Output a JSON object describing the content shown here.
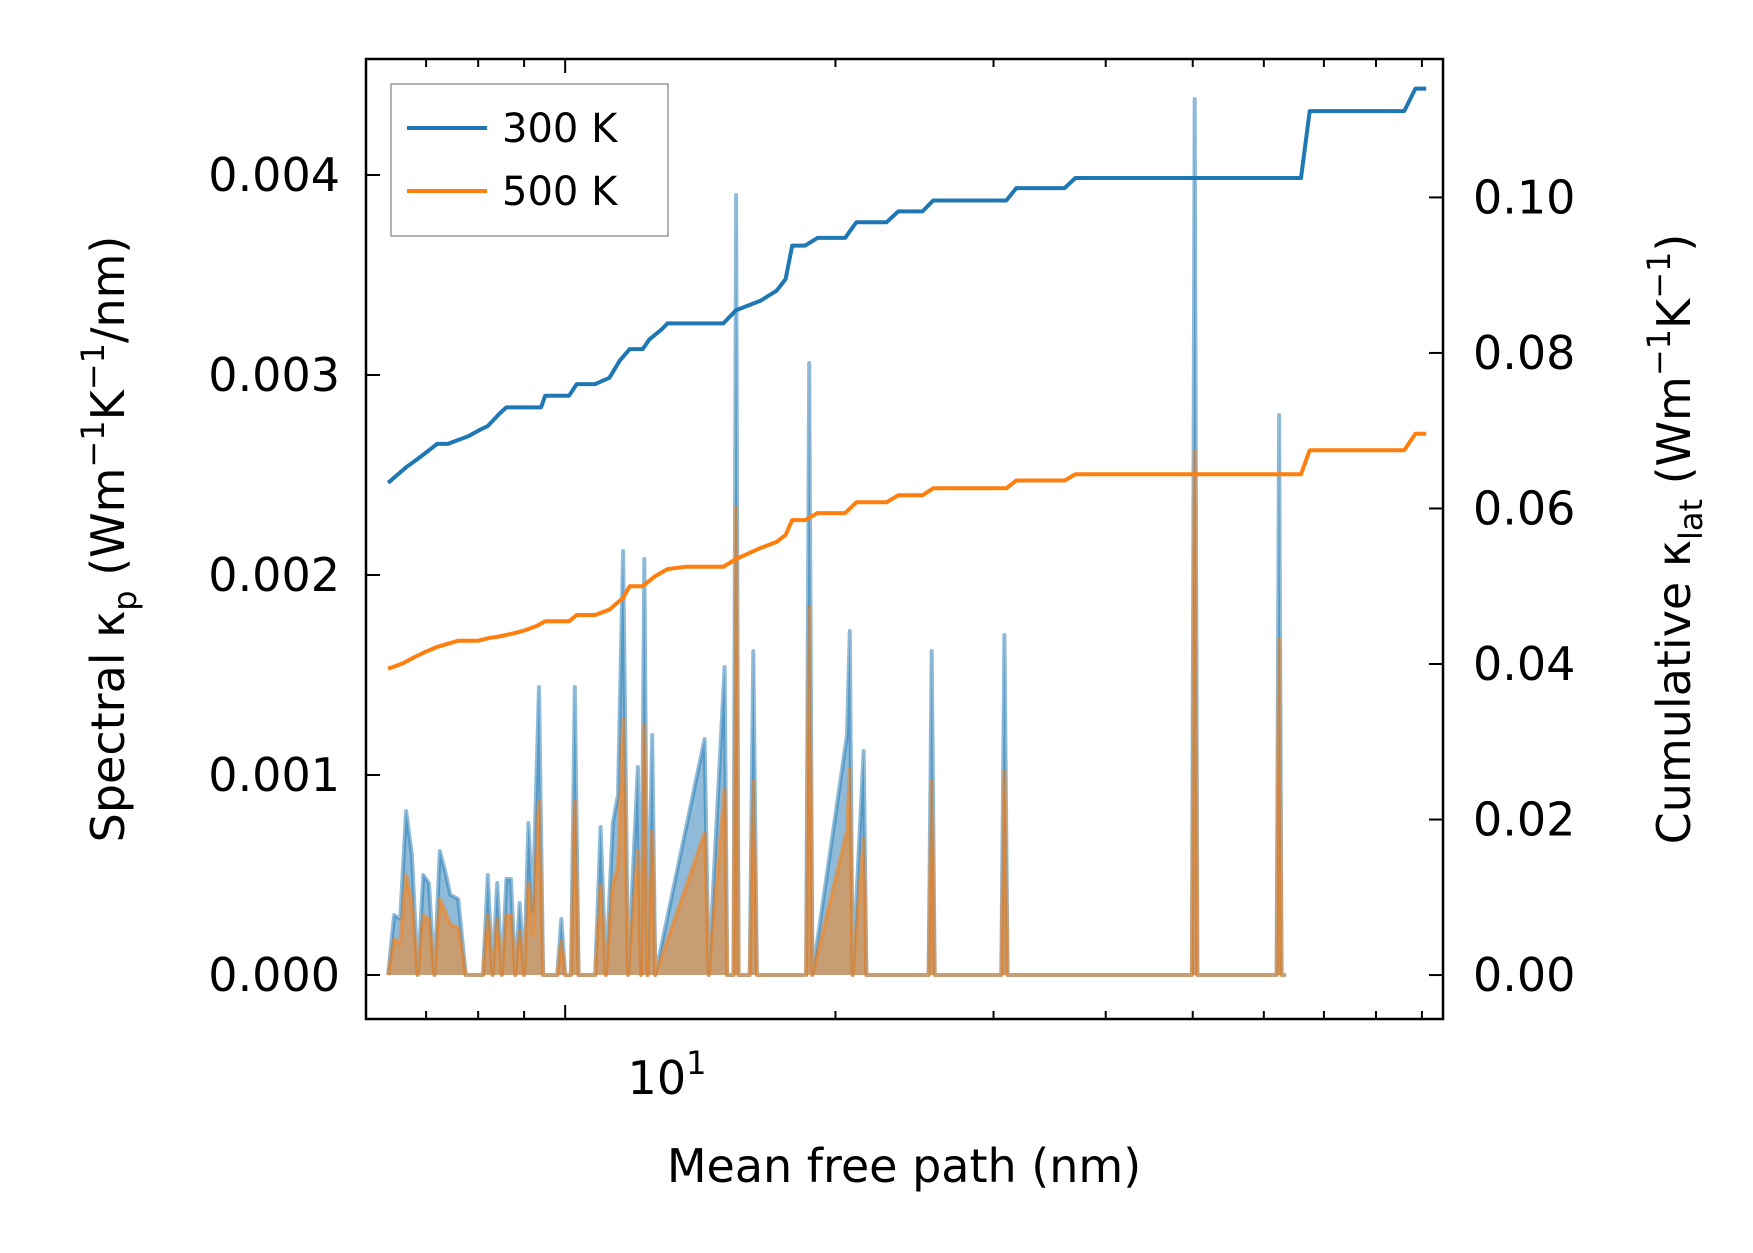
{
  "chart_data": {
    "type": "line",
    "xscale": "log",
    "xlabel": "Mean free path (nm)",
    "ylabel_left": {
      "main": "Spectral κ",
      "sub": "p",
      "pre_units": " (Wm",
      "e1": "−1",
      "mid": "K",
      "e2": "−1",
      "post": "/nm)"
    },
    "ylabel_right": {
      "main": "Cumulative κ",
      "sub": "lat",
      "pre_units": " (Wm",
      "e1": "−1",
      "mid": "K",
      "e2": "−1",
      "post": ")"
    },
    "xlim": [
      6.0,
      95.0
    ],
    "ylim_left": [
      -0.00022,
      0.00458
    ],
    "ylim_right": [
      -0.00565,
      0.1178
    ],
    "x_tick_labels": [
      {
        "base": "10",
        "exp": "1",
        "value": 10
      }
    ],
    "yticks_left": [
      {
        "value": 0.0,
        "label": "0.000"
      },
      {
        "value": 0.001,
        "label": "0.001"
      },
      {
        "value": 0.002,
        "label": "0.002"
      },
      {
        "value": 0.003,
        "label": "0.003"
      },
      {
        "value": 0.004,
        "label": "0.004"
      }
    ],
    "yticks_right": [
      {
        "value": 0.0,
        "label": "0.00"
      },
      {
        "value": 0.02,
        "label": "0.02"
      },
      {
        "value": 0.04,
        "label": "0.04"
      },
      {
        "value": 0.06,
        "label": "0.06"
      },
      {
        "value": 0.08,
        "label": "0.08"
      },
      {
        "value": 0.1,
        "label": "0.10"
      }
    ],
    "legend": {
      "placement": "upper-left",
      "entries": [
        "300 K",
        "500 K"
      ]
    },
    "series": [
      {
        "name": "300 K",
        "color": "#1f77b4",
        "cumulative": [
          [
            6.35,
            0.0633
          ],
          [
            6.5,
            0.0643
          ],
          [
            6.65,
            0.0653
          ],
          [
            6.8,
            0.0661
          ],
          [
            7.0,
            0.0672
          ],
          [
            7.2,
            0.0683
          ],
          [
            7.4,
            0.0683
          ],
          [
            7.6,
            0.0688
          ],
          [
            7.8,
            0.0693
          ],
          [
            8.0,
            0.07
          ],
          [
            8.2,
            0.0706
          ],
          [
            8.45,
            0.0722
          ],
          [
            8.6,
            0.073
          ],
          [
            8.9,
            0.073
          ],
          [
            9.4,
            0.073
          ],
          [
            9.5,
            0.0745
          ],
          [
            10.1,
            0.0745
          ],
          [
            10.3,
            0.076
          ],
          [
            10.8,
            0.076
          ],
          [
            11.2,
            0.0768
          ],
          [
            11.5,
            0.079
          ],
          [
            11.8,
            0.0805
          ],
          [
            12.2,
            0.0805
          ],
          [
            12.4,
            0.0817
          ],
          [
            12.8,
            0.083
          ],
          [
            13.0,
            0.0838
          ],
          [
            13.6,
            0.0838
          ],
          [
            15.0,
            0.0838
          ],
          [
            15.5,
            0.0855
          ],
          [
            16.5,
            0.0867
          ],
          [
            17.2,
            0.088
          ],
          [
            17.6,
            0.0895
          ],
          [
            17.9,
            0.0938
          ],
          [
            18.5,
            0.0938
          ],
          [
            19.1,
            0.0948
          ],
          [
            20.5,
            0.0948
          ],
          [
            21.1,
            0.0968
          ],
          [
            22.8,
            0.0968
          ],
          [
            23.5,
            0.0982
          ],
          [
            25.0,
            0.0982
          ],
          [
            25.7,
            0.0996
          ],
          [
            27.4,
            0.0996
          ],
          [
            31.0,
            0.0996
          ],
          [
            31.8,
            0.1012
          ],
          [
            36.0,
            0.1012
          ],
          [
            37.0,
            0.1025
          ],
          [
            46.0,
            0.1025
          ],
          [
            66.0,
            0.1025
          ],
          [
            67.5,
            0.1111
          ],
          [
            86.0,
            0.1111
          ],
          [
            88.5,
            0.114
          ],
          [
            91.0,
            0.114
          ]
        ],
        "spectral": [
          [
            6.35,
            0.0
          ],
          [
            6.45,
            0.0003
          ],
          [
            6.55,
            0.00028
          ],
          [
            6.65,
            0.00082
          ],
          [
            6.75,
            0.0006
          ],
          [
            6.85,
            0.0
          ],
          [
            6.95,
            0.0005
          ],
          [
            7.05,
            0.00046
          ],
          [
            7.15,
            0.0
          ],
          [
            7.25,
            0.00062
          ],
          [
            7.35,
            0.00052
          ],
          [
            7.45,
            0.0004
          ],
          [
            7.6,
            0.00038
          ],
          [
            7.75,
            0.0
          ],
          [
            8.1,
            0.0
          ],
          [
            8.2,
            0.0005
          ],
          [
            8.3,
            0.0
          ],
          [
            8.4,
            0.00046
          ],
          [
            8.5,
            0.0
          ],
          [
            8.6,
            0.00048
          ],
          [
            8.7,
            0.00048
          ],
          [
            8.8,
            0.0
          ],
          [
            8.9,
            0.00036
          ],
          [
            9.0,
            0.0
          ],
          [
            9.1,
            0.00076
          ],
          [
            9.2,
            0.00032
          ],
          [
            9.35,
            0.00144
          ],
          [
            9.45,
            0.0
          ],
          [
            9.8,
            0.0
          ],
          [
            9.9,
            0.00028
          ],
          [
            10.0,
            0.0
          ],
          [
            10.15,
            0.0
          ],
          [
            10.25,
            0.00144
          ],
          [
            10.35,
            0.0
          ],
          [
            10.8,
            0.0
          ],
          [
            10.95,
            0.00074
          ],
          [
            11.1,
            0.0
          ],
          [
            11.3,
            0.00076
          ],
          [
            11.45,
            0.0009
          ],
          [
            11.6,
            0.00212
          ],
          [
            11.75,
            0.0
          ],
          [
            12.05,
            0.00104
          ],
          [
            12.15,
            0.0
          ],
          [
            12.25,
            0.00208
          ],
          [
            12.35,
            0.0
          ],
          [
            12.5,
            0.0012
          ],
          [
            12.6,
            0.0
          ],
          [
            14.3,
            0.00118
          ],
          [
            14.45,
            0.0
          ],
          [
            15.05,
            0.00154
          ],
          [
            15.15,
            0.0
          ],
          [
            15.4,
            0.0
          ],
          [
            15.5,
            0.0039
          ],
          [
            15.6,
            0.0
          ],
          [
            16.05,
            0.0
          ],
          [
            16.2,
            0.00162
          ],
          [
            16.35,
            0.0
          ],
          [
            18.55,
            0.0
          ],
          [
            18.7,
            0.00306
          ],
          [
            18.85,
            0.0
          ],
          [
            20.6,
            0.0012
          ],
          [
            20.75,
            0.00172
          ],
          [
            20.9,
            0.0
          ],
          [
            21.5,
            0.00112
          ],
          [
            21.65,
            0.0
          ],
          [
            25.4,
            0.0
          ],
          [
            25.6,
            0.00162
          ],
          [
            25.8,
            0.0
          ],
          [
            30.6,
            0.0
          ],
          [
            30.85,
            0.0017
          ],
          [
            31.1,
            0.0
          ],
          [
            49.9,
            0.0
          ],
          [
            50.25,
            0.00438
          ],
          [
            50.6,
            0.0
          ],
          [
            62.0,
            0.0
          ],
          [
            62.4,
            0.0028
          ],
          [
            62.8,
            0.0
          ],
          [
            63.5,
            0.0
          ]
        ]
      },
      {
        "name": "500 K",
        "color": "#ff7f0e",
        "cumulative": [
          [
            6.35,
            0.0394
          ],
          [
            6.6,
            0.0401
          ],
          [
            6.8,
            0.0409
          ],
          [
            7.0,
            0.0416
          ],
          [
            7.2,
            0.0422
          ],
          [
            7.4,
            0.0426
          ],
          [
            7.6,
            0.043
          ],
          [
            8.0,
            0.043
          ],
          [
            8.2,
            0.0433
          ],
          [
            8.5,
            0.0436
          ],
          [
            8.8,
            0.044
          ],
          [
            9.0,
            0.0443
          ],
          [
            9.3,
            0.0449
          ],
          [
            9.5,
            0.0455
          ],
          [
            10.1,
            0.0455
          ],
          [
            10.3,
            0.0463
          ],
          [
            10.8,
            0.0463
          ],
          [
            11.2,
            0.047
          ],
          [
            11.6,
            0.0485
          ],
          [
            11.8,
            0.05
          ],
          [
            12.2,
            0.05
          ],
          [
            12.6,
            0.0513
          ],
          [
            13.0,
            0.0522
          ],
          [
            13.6,
            0.0525
          ],
          [
            15.0,
            0.0525
          ],
          [
            15.5,
            0.0535
          ],
          [
            16.5,
            0.0549
          ],
          [
            17.2,
            0.0557
          ],
          [
            17.6,
            0.0566
          ],
          [
            17.9,
            0.0585
          ],
          [
            18.5,
            0.0585
          ],
          [
            19.1,
            0.0594
          ],
          [
            20.5,
            0.0594
          ],
          [
            21.1,
            0.0608
          ],
          [
            22.8,
            0.0608
          ],
          [
            23.5,
            0.0617
          ],
          [
            25.0,
            0.0617
          ],
          [
            25.7,
            0.0626
          ],
          [
            27.4,
            0.0626
          ],
          [
            31.0,
            0.0626
          ],
          [
            31.8,
            0.0636
          ],
          [
            36.0,
            0.0636
          ],
          [
            37.0,
            0.0644
          ],
          [
            46.0,
            0.0644
          ],
          [
            66.0,
            0.0644
          ],
          [
            67.5,
            0.0675
          ],
          [
            86.0,
            0.0675
          ],
          [
            88.5,
            0.0696
          ],
          [
            91.0,
            0.0696
          ]
        ],
        "spectral": [
          [
            6.35,
            0.0
          ],
          [
            6.45,
            0.00018
          ],
          [
            6.55,
            0.00016
          ],
          [
            6.65,
            0.0005
          ],
          [
            6.75,
            0.00036
          ],
          [
            6.85,
            0.0
          ],
          [
            6.95,
            0.0003
          ],
          [
            7.05,
            0.00028
          ],
          [
            7.15,
            0.0
          ],
          [
            7.25,
            0.00038
          ],
          [
            7.35,
            0.00032
          ],
          [
            7.45,
            0.00025
          ],
          [
            7.6,
            0.00024
          ],
          [
            7.75,
            0.0
          ],
          [
            8.1,
            0.0
          ],
          [
            8.2,
            0.0003
          ],
          [
            8.3,
            0.0
          ],
          [
            8.4,
            0.00028
          ],
          [
            8.5,
            0.0
          ],
          [
            8.6,
            0.0003
          ],
          [
            8.7,
            0.0003
          ],
          [
            8.8,
            0.0
          ],
          [
            8.9,
            0.00022
          ],
          [
            9.0,
            0.0
          ],
          [
            9.1,
            0.00046
          ],
          [
            9.2,
            0.0002
          ],
          [
            9.35,
            0.00087
          ],
          [
            9.45,
            0.0
          ],
          [
            9.8,
            0.0
          ],
          [
            9.9,
            0.00017
          ],
          [
            10.0,
            0.0
          ],
          [
            10.15,
            0.0
          ],
          [
            10.25,
            0.00087
          ],
          [
            10.35,
            0.0
          ],
          [
            10.8,
            0.0
          ],
          [
            10.95,
            0.00045
          ],
          [
            11.1,
            0.0
          ],
          [
            11.3,
            0.00046
          ],
          [
            11.45,
            0.00054
          ],
          [
            11.6,
            0.00128
          ],
          [
            11.75,
            0.0
          ],
          [
            12.05,
            0.00062
          ],
          [
            12.15,
            0.0
          ],
          [
            12.25,
            0.00125
          ],
          [
            12.35,
            0.0
          ],
          [
            12.5,
            0.00072
          ],
          [
            12.6,
            0.0
          ],
          [
            14.3,
            0.00071
          ],
          [
            14.45,
            0.0
          ],
          [
            15.05,
            0.00093
          ],
          [
            15.15,
            0.0
          ],
          [
            15.4,
            0.0
          ],
          [
            15.5,
            0.00234
          ],
          [
            15.6,
            0.0
          ],
          [
            16.05,
            0.0
          ],
          [
            16.2,
            0.00097
          ],
          [
            16.35,
            0.0
          ],
          [
            18.55,
            0.0
          ],
          [
            18.7,
            0.00184
          ],
          [
            18.85,
            0.0
          ],
          [
            20.6,
            0.00072
          ],
          [
            20.75,
            0.00103
          ],
          [
            20.9,
            0.0
          ],
          [
            21.5,
            0.00068
          ],
          [
            21.65,
            0.0
          ],
          [
            25.4,
            0.0
          ],
          [
            25.6,
            0.00097
          ],
          [
            25.8,
            0.0
          ],
          [
            30.6,
            0.0
          ],
          [
            30.85,
            0.00102
          ],
          [
            31.1,
            0.0
          ],
          [
            49.9,
            0.0
          ],
          [
            50.25,
            0.00262
          ],
          [
            50.6,
            0.0
          ],
          [
            62.0,
            0.0
          ],
          [
            62.4,
            0.00168
          ],
          [
            62.8,
            0.0
          ],
          [
            63.5,
            0.0
          ]
        ]
      }
    ]
  }
}
